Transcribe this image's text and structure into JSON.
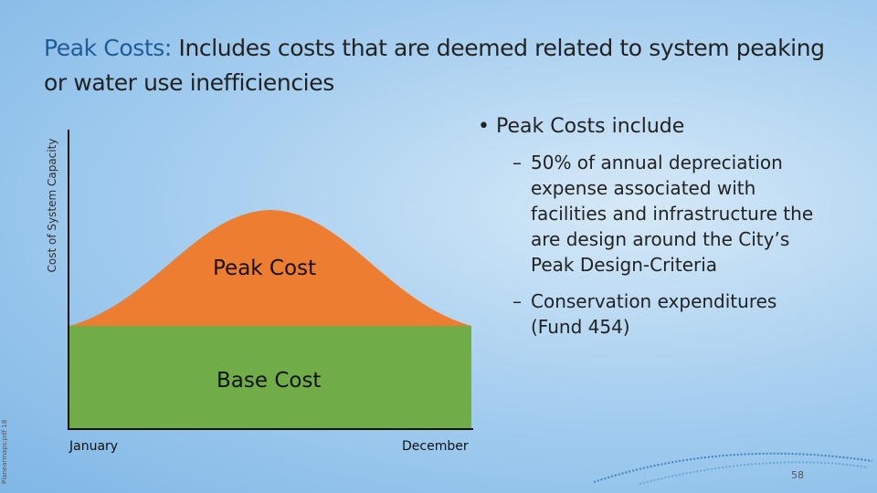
{
  "title": {
    "lead": "Peak Costs:",
    "rest": " Includes costs that are deemed related to system peaking or water use inefficiencies"
  },
  "diagram": {
    "y_axis_label": "Cost of System Capacity",
    "x_start_label": "January",
    "x_end_label": "December",
    "peak_label": "Peak Cost",
    "base_label": "Base Cost",
    "colors": {
      "peak": "#ed7d31",
      "base": "#70ad47",
      "axis": "#111111",
      "title_lead": "#1f5d99"
    }
  },
  "bullets": {
    "main": "Peak Costs include",
    "items": [
      "50% of annual depreciation expense associated with facilities and infrastructure the are design around the City’s Peak Design-Criteria",
      "Conservation expenditures (Fund 454)"
    ]
  },
  "footer": {
    "side_note": "Planearmaps:pdf 18",
    "page_number": "58"
  }
}
